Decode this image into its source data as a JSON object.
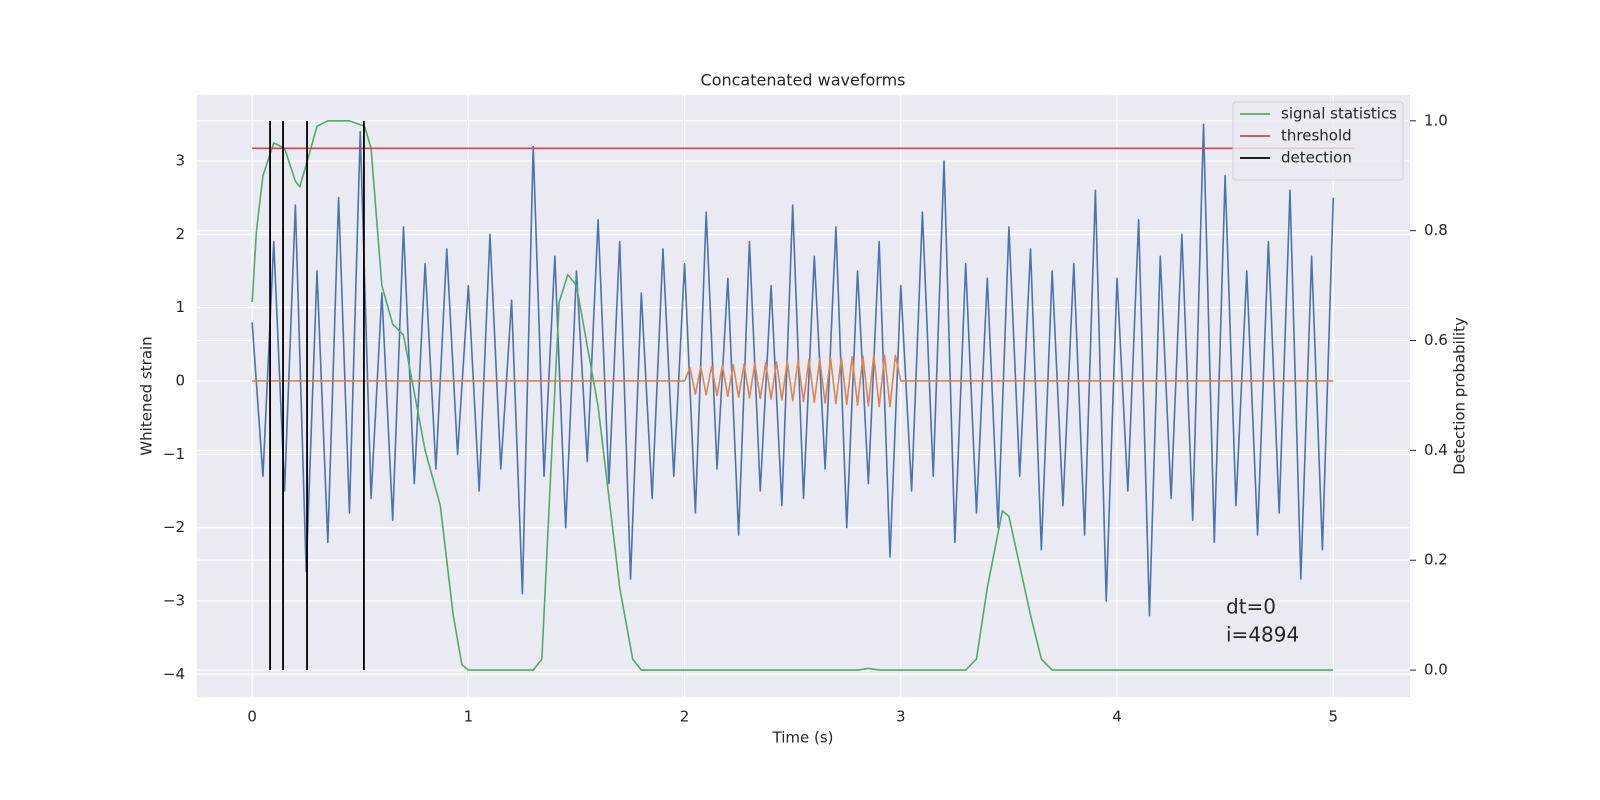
{
  "chart_data": {
    "type": "line",
    "title": "Concatenated waveforms",
    "xlabel": "Time (s)",
    "ylabel": "Whitened strain",
    "y2label": "Detection probability",
    "xlim": [
      -0.255,
      5.355
    ],
    "xticks": [
      0,
      1,
      2,
      3,
      4,
      5
    ],
    "ylim": [
      -4.31,
      3.9
    ],
    "yticks": [
      {
        "value": -4,
        "label": "−4"
      },
      {
        "value": -3,
        "label": "−3"
      },
      {
        "value": -2,
        "label": "−2"
      },
      {
        "value": -1,
        "label": "−1"
      },
      0,
      1,
      2,
      3
    ],
    "y2lim": [
      -0.049,
      1.047
    ],
    "y2ticks": [
      {
        "value": 0,
        "label": "0.0"
      },
      0.2,
      0.4,
      0.6,
      0.8,
      {
        "value": 1,
        "label": "1.0"
      }
    ],
    "grid": true,
    "legend": "upper right",
    "annotations": [
      "dt=0",
      "i=4894"
    ],
    "series": [
      {
        "color": "#4c72b0",
        "x": [
          0,
          0.05,
          0.1,
          0.15,
          0.2,
          0.25,
          0.3,
          0.35,
          0.4,
          0.45,
          0.5,
          0.55,
          0.6,
          0.65,
          0.7,
          0.75,
          0.8,
          0.85,
          0.9,
          0.95,
          1,
          1.05,
          1.1,
          1.15,
          1.2,
          1.25,
          1.3,
          1.35,
          1.4,
          1.45,
          1.5,
          1.55,
          1.6,
          1.65,
          1.7,
          1.75,
          1.8,
          1.85,
          1.9,
          1.95,
          2,
          2.05,
          2.1,
          2.15,
          2.2,
          2.25,
          2.3,
          2.35,
          2.4,
          2.45,
          2.5,
          2.55,
          2.6,
          2.65,
          2.7,
          2.75,
          2.8,
          2.85,
          2.9,
          2.95,
          3,
          3.05,
          3.1,
          3.15,
          3.2,
          3.25,
          3.3,
          3.35,
          3.4,
          3.45,
          3.5,
          3.55,
          3.6,
          3.65,
          3.7,
          3.75,
          3.8,
          3.85,
          3.9,
          3.95,
          4,
          4.05,
          4.1,
          4.15,
          4.2,
          4.25,
          4.3,
          4.35,
          4.4,
          4.45,
          4.5,
          4.55,
          4.6,
          4.65,
          4.7,
          4.75,
          4.8,
          4.85,
          4.9,
          4.95,
          5
        ],
        "values": [
          0.8,
          -1.3,
          1.9,
          -1.5,
          2.4,
          -2.6,
          1.5,
          -2.2,
          2.5,
          -1.8,
          3.4,
          -1.6,
          1.2,
          -1.9,
          2.1,
          -1.4,
          1.6,
          -1.2,
          1.8,
          -1.0,
          1.3,
          -1.5,
          2.0,
          -1.2,
          1.1,
          -2.9,
          3.2,
          -1.3,
          1.7,
          -2.0,
          1.5,
          -1.1,
          2.2,
          -1.4,
          1.9,
          -2.7,
          1.2,
          -1.6,
          1.8,
          -1.3,
          1.6,
          -1.8,
          2.3,
          -1.2,
          1.4,
          -2.1,
          1.9,
          -1.5,
          1.3,
          -1.7,
          2.4,
          -1.6,
          1.7,
          -1.2,
          2.1,
          -2.0,
          1.5,
          -1.4,
          1.9,
          -2.4,
          1.3,
          -1.5,
          2.3,
          -1.3,
          3.0,
          -2.2,
          1.6,
          -1.8,
          1.4,
          -2.0,
          2.1,
          -1.3,
          1.8,
          -2.3,
          1.5,
          -1.7,
          1.6,
          -2.1,
          2.6,
          -3.0,
          1.4,
          -1.5,
          2.2,
          -3.2,
          1.7,
          -1.6,
          2.0,
          -1.9,
          3.5,
          -2.2,
          2.8,
          -1.7,
          1.5,
          -2.1,
          1.9,
          -1.8,
          2.6,
          -2.7,
          1.7,
          -2.3,
          2.5
        ]
      },
      {
        "color": "#dd8452",
        "x": [
          0,
          2,
          2.025,
          2.05,
          2.075,
          2.1,
          2.125,
          2.15,
          2.175,
          2.2,
          2.225,
          2.25,
          2.275,
          2.3,
          2.325,
          2.35,
          2.375,
          2.4,
          2.425,
          2.45,
          2.475,
          2.5,
          2.525,
          2.55,
          2.575,
          2.6,
          2.625,
          2.65,
          2.675,
          2.7,
          2.725,
          2.75,
          2.775,
          2.8,
          2.825,
          2.85,
          2.875,
          2.9,
          2.925,
          2.95,
          2.975,
          3,
          5
        ],
        "values": [
          0,
          0,
          0.18,
          -0.18,
          0.19,
          -0.19,
          0.2,
          -0.2,
          0.21,
          -0.21,
          0.22,
          -0.22,
          0.23,
          -0.23,
          0.24,
          -0.24,
          0.25,
          -0.25,
          0.26,
          -0.26,
          0.27,
          -0.27,
          0.28,
          -0.28,
          0.29,
          -0.29,
          0.3,
          -0.3,
          0.31,
          -0.31,
          0.32,
          -0.32,
          0.33,
          -0.33,
          0.34,
          -0.34,
          0.35,
          -0.35,
          0.35,
          -0.35,
          0.35,
          0,
          0
        ]
      },
      {
        "name": "signal statistics",
        "color": "#55a868",
        "axis": "y2",
        "x": [
          0,
          0.02,
          0.05,
          0.1,
          0.15,
          0.2,
          0.22,
          0.25,
          0.3,
          0.35,
          0.45,
          0.52,
          0.55,
          0.6,
          0.65,
          0.7,
          0.8,
          0.87,
          0.93,
          0.97,
          1,
          1.3,
          1.34,
          1.38,
          1.42,
          1.46,
          1.5,
          1.6,
          1.7,
          1.76,
          1.8,
          2.8,
          2.85,
          2.9,
          3.3,
          3.35,
          3.4,
          3.47,
          3.5,
          3.6,
          3.65,
          3.7,
          5
        ],
        "values": [
          0.67,
          0.8,
          0.9,
          0.96,
          0.95,
          0.89,
          0.88,
          0.92,
          0.99,
          1,
          1,
          0.99,
          0.95,
          0.7,
          0.63,
          0.61,
          0.4,
          0.3,
          0.1,
          0.01,
          0,
          0,
          0.02,
          0.35,
          0.67,
          0.72,
          0.7,
          0.48,
          0.15,
          0.02,
          0,
          0,
          0.003,
          0,
          0,
          0.02,
          0.15,
          0.29,
          0.28,
          0.1,
          0.02,
          0,
          0
        ]
      },
      {
        "name": "threshold",
        "color": "#c44e52",
        "axis": "y2",
        "x": [
          0,
          5.1
        ],
        "values": [
          0.95,
          0.95
        ]
      },
      {
        "name": "detection",
        "color": "#000000",
        "axis": "y2",
        "type": "vline",
        "x": [
          0.083,
          0.143,
          0.254,
          0.517
        ],
        "ymin": 0,
        "ymax": 1
      }
    ]
  }
}
